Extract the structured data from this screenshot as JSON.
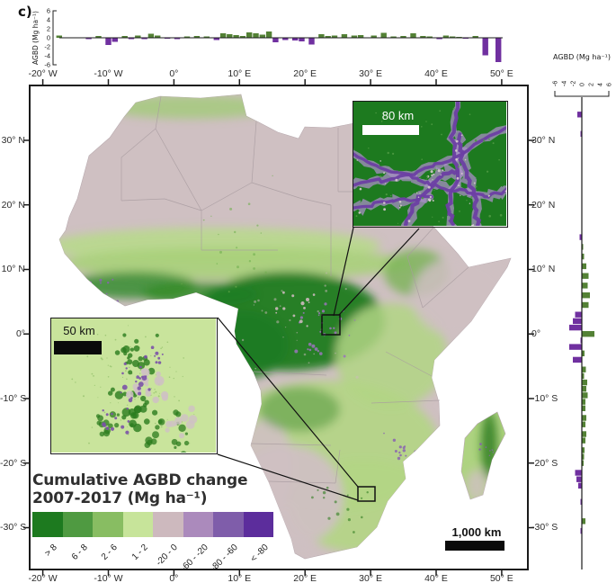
{
  "figure_label": "c)",
  "colors": {
    "bar_positive": "#538135",
    "bar_negative": "#7030a0",
    "map_dry": "#cfc0c2",
    "map_forest": "#1e7b20",
    "map_savanna": "#b2d584",
    "frame": "#1a1a1a"
  },
  "map": {
    "lon_ticks": [
      {
        "v": -20,
        "label": "-20° W"
      },
      {
        "v": -10,
        "label": "-10° W"
      },
      {
        "v": 0,
        "label": "0°"
      },
      {
        "v": 10,
        "label": "10° E"
      },
      {
        "v": 20,
        "label": "20° E"
      },
      {
        "v": 30,
        "label": "30° E"
      },
      {
        "v": 40,
        "label": "40° E"
      },
      {
        "v": 50,
        "label": "50° E"
      }
    ],
    "lat_ticks": [
      {
        "v": 30,
        "label": "30° N"
      },
      {
        "v": 20,
        "label": "20° N"
      },
      {
        "v": 10,
        "label": "10° N"
      },
      {
        "v": 0,
        "label": "0°"
      },
      {
        "v": -10,
        "label": "-10° S"
      },
      {
        "v": -20,
        "label": "-20° S"
      },
      {
        "v": -30,
        "label": "-30° S"
      }
    ]
  },
  "legend": {
    "title_line1": "Cumulative AGBD change",
    "title_line2": "2007-2017 (Mg ha⁻¹)",
    "classes": [
      {
        "label": "> 8",
        "color": "#1d7a1f"
      },
      {
        "label": "6 - 8",
        "color": "#4f9a41"
      },
      {
        "label": "2 - 6",
        "color": "#88bd62"
      },
      {
        "label": "1 - 2",
        "color": "#c7e49a"
      },
      {
        "label": "-20 - 0",
        "color": "#cdb9be"
      },
      {
        "label": "-60 - -20",
        "color": "#ab8abc"
      },
      {
        "label": "-80 - -60",
        "color": "#7f5daa"
      },
      {
        "label": "< -80",
        "color": "#5c2d9c"
      }
    ]
  },
  "insets": {
    "top_right": {
      "scale_label": "80 km"
    },
    "left": {
      "scale_label": "50 km"
    }
  },
  "scale_bar": {
    "label": "1,000 km"
  },
  "chart_data": [
    {
      "id": "top-marginal-histogram",
      "type": "bar",
      "orientation": "vertical",
      "ylabel": "AGBD (Mg ha⁻¹)",
      "x_axis": "longitude_deg",
      "ylim": [
        -6,
        6
      ],
      "yticks": [
        6,
        4,
        2,
        0,
        -2,
        -4,
        -6
      ],
      "grid": false,
      "x": [
        -17.5,
        -13,
        -11.5,
        -10,
        -9,
        -7.5,
        -6.5,
        -5.5,
        -4.5,
        -3.5,
        -2.5,
        -1,
        0.5,
        2,
        3.5,
        5,
        6.5,
        7.5,
        8.5,
        9.5,
        10.5,
        11.5,
        12.5,
        13.5,
        14.5,
        15.5,
        17,
        18.5,
        19.5,
        21,
        22.5,
        23.5,
        24.5,
        26,
        27.5,
        28.5,
        30.5,
        32,
        33.5,
        35,
        36.5,
        38,
        39,
        40.5,
        41.5,
        42.5,
        43.5,
        44.5,
        46,
        47.5,
        49.5
      ],
      "values": [
        0.5,
        -0.3,
        0.4,
        -1.6,
        -0.9,
        0.4,
        -0.3,
        0.5,
        -0.3,
        0.9,
        0.5,
        -0.2,
        -0.3,
        0.3,
        0.4,
        0.3,
        -0.5,
        1.0,
        0.8,
        0.6,
        0.4,
        1.2,
        1.0,
        0.7,
        1.4,
        -1.0,
        -0.5,
        -0.6,
        -0.8,
        -1.5,
        0.8,
        0.4,
        0.5,
        0.8,
        0.5,
        0.6,
        0.5,
        1.1,
        0.3,
        0.4,
        1.0,
        0.4,
        0.3,
        -0.3,
        0.5,
        0.3,
        0.2,
        -0.2,
        0.4,
        -3.9,
        -5.4
      ],
      "series_colors": {
        "positive": "#538135",
        "negative": "#7030a0"
      }
    },
    {
      "id": "right-marginal-histogram",
      "type": "bar",
      "orientation": "horizontal",
      "ylabel": "AGBD (Mg ha⁻¹)",
      "x_axis": "latitude_deg",
      "xlim": [
        -6,
        6
      ],
      "xticks": [
        -6,
        -4,
        -2,
        0,
        2,
        4,
        6
      ],
      "grid": false,
      "x": [
        34,
        31,
        15,
        13.5,
        12,
        10.5,
        9,
        7.5,
        6,
        4.5,
        3,
        2,
        1,
        0,
        -1,
        -2,
        -3,
        -4,
        -5.5,
        -6.5,
        -7.5,
        -8.5,
        -9.5,
        -10.5,
        -11.5,
        -13,
        -14,
        -15.5,
        -16.5,
        -18,
        -19,
        -20,
        -21.5,
        -22.5,
        -23.5,
        -26,
        -29,
        -30.5
      ],
      "values": [
        -1.0,
        -0.3,
        -0.5,
        0.3,
        0.5,
        1.0,
        1.5,
        1.3,
        1.8,
        1.5,
        -1.5,
        -2.0,
        -2.8,
        2.8,
        -0.3,
        -2.8,
        0.6,
        -2.0,
        0.9,
        0.5,
        1.2,
        1.0,
        1.3,
        0.8,
        0.8,
        1.0,
        0.8,
        1.0,
        0.8,
        0.6,
        0.5,
        0.4,
        -1.5,
        -1.2,
        -0.8,
        -0.3,
        0.8,
        -0.3
      ],
      "series_colors": {
        "positive": "#538135",
        "negative": "#7030a0"
      }
    }
  ]
}
